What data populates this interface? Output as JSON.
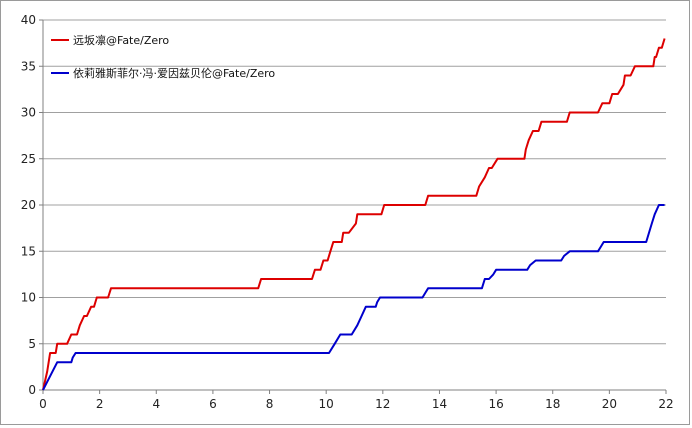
{
  "chart_data": {
    "type": "line",
    "title": "",
    "xlabel": "",
    "ylabel": "",
    "xlim": [
      0,
      22
    ],
    "ylim": [
      0,
      40
    ],
    "x_ticks": [
      0,
      2,
      4,
      6,
      8,
      10,
      12,
      14,
      16,
      18,
      20,
      22
    ],
    "y_ticks": [
      0,
      5,
      10,
      15,
      20,
      25,
      30,
      35,
      40
    ],
    "grid": "horizontal",
    "legend_position": "top-left",
    "series": [
      {
        "name": "远坂凛@Fate/Zero",
        "color": "#dd0000",
        "x": [
          0,
          0.15,
          0.25,
          0.3,
          0.45,
          0.5,
          0.65,
          0.75,
          0.85,
          1.0,
          1.05,
          1.2,
          1.3,
          1.45,
          1.55,
          1.7,
          1.8,
          1.9,
          2.0,
          2.05,
          2.1,
          2.3,
          2.4,
          2.55,
          7.6,
          7.7,
          7.9,
          9.5,
          9.6,
          9.7,
          9.8,
          9.9,
          10.0,
          10.05,
          10.15,
          10.25,
          10.35,
          10.55,
          10.6,
          10.7,
          10.8,
          11.05,
          11.1,
          11.2,
          11.25,
          11.95,
          12.05,
          12.2,
          12.25,
          13.5,
          13.6,
          13.7,
          15.3,
          15.4,
          15.6,
          15.75,
          15.85,
          16.05,
          16.15,
          16.3,
          17.0,
          17.05,
          17.15,
          17.3,
          17.5,
          17.6,
          17.75,
          17.8,
          18.0,
          18.5,
          18.6,
          18.75,
          19.6,
          19.75,
          20.0,
          20.1,
          20.3,
          20.5,
          20.55,
          20.7,
          20.75,
          20.9,
          21.0,
          21.05,
          21.2,
          21.55,
          21.6,
          21.65,
          21.75,
          21.85,
          21.95
        ],
        "values": [
          0,
          2,
          4,
          4,
          4,
          5,
          5,
          5,
          5,
          6,
          6,
          6,
          7,
          8,
          8,
          9,
          9,
          10,
          10,
          10,
          10,
          10,
          11,
          11,
          11,
          12,
          12,
          12,
          13,
          13,
          13,
          14,
          14,
          14,
          15,
          16,
          16,
          16,
          17,
          17,
          17,
          18,
          19,
          19,
          19,
          19,
          20,
          20,
          20,
          20,
          21,
          21,
          21,
          22,
          23,
          24,
          24,
          25,
          25,
          25,
          25,
          26,
          27,
          28,
          28,
          29,
          29,
          29,
          29,
          29,
          30,
          30,
          30,
          31,
          31,
          32,
          32,
          33,
          34,
          34,
          34,
          35,
          35,
          35,
          35,
          35,
          36,
          36,
          37,
          37,
          38
        ]
      },
      {
        "name": "依莉雅斯菲尔·冯·爱因兹贝伦@Fate/Zero",
        "color": "#0000cc",
        "x": [
          0,
          0.5,
          0.6,
          0.7,
          0.9,
          1.0,
          1.05,
          1.15,
          1.25,
          10.1,
          10.3,
          10.5,
          10.6,
          10.8,
          10.9,
          11.1,
          11.25,
          11.4,
          11.6,
          11.75,
          11.8,
          11.9,
          12.0,
          13.4,
          13.5,
          13.6,
          15.5,
          15.6,
          15.75,
          15.9,
          16.0,
          17.1,
          17.2,
          17.4,
          17.5,
          18.3,
          18.4,
          18.6,
          18.75,
          19.6,
          19.7,
          19.8,
          21.3,
          21.5,
          21.6,
          21.75,
          21.85,
          21.95
        ],
        "values": [
          0,
          3,
          3,
          3,
          3,
          3,
          3.5,
          4,
          4,
          4,
          5,
          6,
          6,
          6,
          6,
          7,
          8,
          9,
          9,
          9,
          9.5,
          10,
          10,
          10,
          10.5,
          11,
          11,
          12,
          12,
          12.5,
          13,
          13,
          13.5,
          14,
          14,
          14,
          14.5,
          15,
          15,
          15,
          15.5,
          16,
          16,
          18,
          19,
          20,
          20,
          20
        ]
      }
    ]
  }
}
